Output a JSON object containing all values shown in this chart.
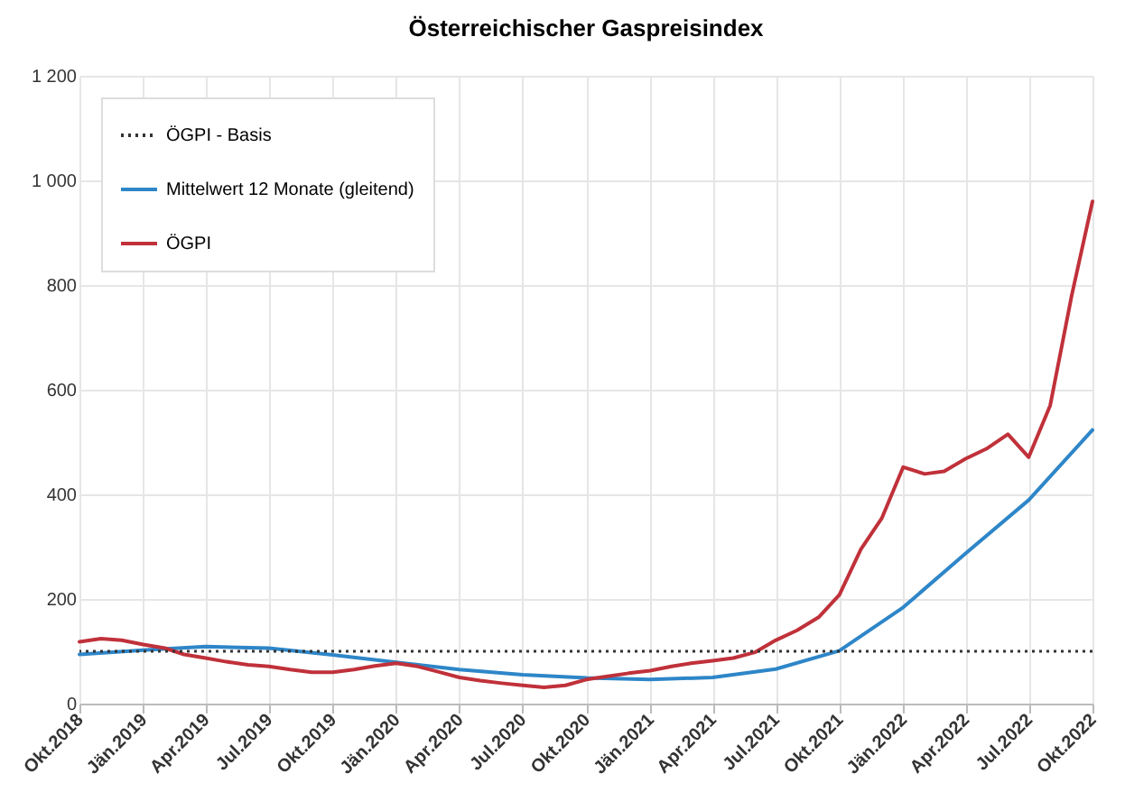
{
  "chart_data": {
    "type": "line",
    "title": "Österreichischer Gaspreisindex",
    "x": [
      "2018-10",
      "2018-11",
      "2018-12",
      "2019-01",
      "2019-02",
      "2019-03",
      "2019-04",
      "2019-05",
      "2019-06",
      "2019-07",
      "2019-08",
      "2019-09",
      "2019-10",
      "2019-11",
      "2019-12",
      "2020-01",
      "2020-02",
      "2020-03",
      "2020-04",
      "2020-05",
      "2020-06",
      "2020-07",
      "2020-08",
      "2020-09",
      "2020-10",
      "2020-11",
      "2020-12",
      "2021-01",
      "2021-02",
      "2021-03",
      "2021-04",
      "2021-05",
      "2021-06",
      "2021-07",
      "2021-08",
      "2021-09",
      "2021-10",
      "2021-11",
      "2021-12",
      "2022-01",
      "2022-02",
      "2022-03",
      "2022-04",
      "2022-05",
      "2022-06",
      "2022-07",
      "2022-08",
      "2022-09",
      "2022-10"
    ],
    "series": [
      {
        "name": "Mittelwert 12 Monate (gleitend)",
        "color": "#2e86c8",
        "x": [
          "2018-10",
          "2019-01",
          "2019-04",
          "2019-07",
          "2019-10",
          "2020-01",
          "2020-04",
          "2020-07",
          "2020-10",
          "2021-01",
          "2021-04",
          "2021-07",
          "2021-10",
          "2022-01",
          "2022-04",
          "2022-07",
          "2022-10"
        ],
        "values": [
          94,
          102,
          109,
          106,
          93,
          79,
          65,
          55,
          49,
          46,
          50,
          66,
          101,
          184,
          287,
          389,
          523
        ]
      },
      {
        "name": "ÖGPI",
        "color": "#c0313a",
        "values": [
          118,
          124,
          121,
          113,
          106,
          94,
          87,
          80,
          74,
          71,
          65,
          60,
          60,
          65,
          72,
          77,
          71,
          61,
          50,
          44,
          39,
          35,
          31,
          35,
          46,
          52,
          58,
          63,
          71,
          77,
          82,
          87,
          98,
          121,
          140,
          165,
          208,
          295,
          354,
          452,
          439,
          444,
          468,
          487,
          515,
          471,
          570,
          780,
          960
        ]
      }
    ],
    "ref_lines": [
      {
        "axis": "y",
        "value": 100,
        "label": "ÖGPI - Basis",
        "color": "#333333",
        "line_style": "dotted"
      }
    ],
    "xlim": [
      "2018-10",
      "2022-10"
    ],
    "xticks": [
      {
        "value": "2018-10",
        "label": "Okt.2018"
      },
      {
        "value": "2019-01",
        "label": "Jän.2019"
      },
      {
        "value": "2019-04",
        "label": "Apr.2019"
      },
      {
        "value": "2019-07",
        "label": "Jul.2019"
      },
      {
        "value": "2019-10",
        "label": "Okt.2019"
      },
      {
        "value": "2020-01",
        "label": "Jän.2020"
      },
      {
        "value": "2020-04",
        "label": "Apr.2020"
      },
      {
        "value": "2020-07",
        "label": "Jul.2020"
      },
      {
        "value": "2020-10",
        "label": "Okt.2020"
      },
      {
        "value": "2021-01",
        "label": "Jän.2021"
      },
      {
        "value": "2021-04",
        "label": "Apr.2021"
      },
      {
        "value": "2021-07",
        "label": "Jul.2021"
      },
      {
        "value": "2021-10",
        "label": "Okt.2021"
      },
      {
        "value": "2022-01",
        "label": "Jän.2022"
      },
      {
        "value": "2022-04",
        "label": "Apr.2022"
      },
      {
        "value": "2022-07",
        "label": "Jul.2022"
      },
      {
        "value": "2022-10",
        "label": "Okt.2022"
      }
    ],
    "ylim": [
      0,
      1200
    ],
    "yticks": [
      0,
      200,
      400,
      600,
      800,
      {
        "value": 1000,
        "label": "1 000"
      },
      {
        "value": 1200,
        "label": "1 200"
      }
    ],
    "grid": true,
    "legend": "top left",
    "line_style": "solid",
    "marker": "none"
  }
}
